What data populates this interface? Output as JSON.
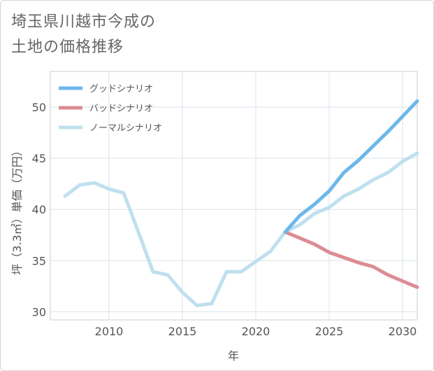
{
  "title_lines": [
    "埼玉県川越市今成の",
    "土地の価格推移"
  ],
  "chart_data": {
    "type": "line",
    "xlabel": "年",
    "ylabel": "坪（3.3㎡）単価（万円）",
    "xlim": [
      2006.0,
      2031.0
    ],
    "ylim": [
      29.2,
      53.5
    ],
    "xticks": [
      2010,
      2015,
      2020,
      2025,
      2030
    ],
    "yticks": [
      30,
      35,
      40,
      45,
      50
    ],
    "grid": true,
    "legend_position": "top-left",
    "series": [
      {
        "name": "グッドシナリオ",
        "color": "#6cb8ea",
        "x": [
          2022,
          2023,
          2024,
          2025,
          2026,
          2027,
          2028,
          2029,
          2030,
          2031
        ],
        "y": [
          37.8,
          39.4,
          40.5,
          41.8,
          43.6,
          44.8,
          46.2,
          47.6,
          49.1,
          50.6
        ]
      },
      {
        "name": "バッドシナリオ",
        "color": "#dc8c94",
        "x": [
          2022,
          2023,
          2024,
          2025,
          2026,
          2027,
          2028,
          2029,
          2030,
          2031
        ],
        "y": [
          37.8,
          37.2,
          36.6,
          35.8,
          35.3,
          34.8,
          34.4,
          33.6,
          33.0,
          32.4
        ]
      },
      {
        "name": "ノーマルシナリオ",
        "color": "#bfe0ee",
        "x": [
          2007,
          2008,
          2009,
          2010,
          2011,
          2012,
          2013,
          2014,
          2015,
          2016,
          2017,
          2018,
          2019,
          2020,
          2021,
          2022,
          2023,
          2024,
          2025,
          2026,
          2027,
          2028,
          2029,
          2030,
          2031
        ],
        "y": [
          41.3,
          42.4,
          42.6,
          42.0,
          41.6,
          37.8,
          33.9,
          33.6,
          31.9,
          30.6,
          30.8,
          33.9,
          33.9,
          34.9,
          35.9,
          37.8,
          38.5,
          39.6,
          40.2,
          41.3,
          42.0,
          42.9,
          43.6,
          44.7,
          45.5
        ]
      }
    ]
  }
}
